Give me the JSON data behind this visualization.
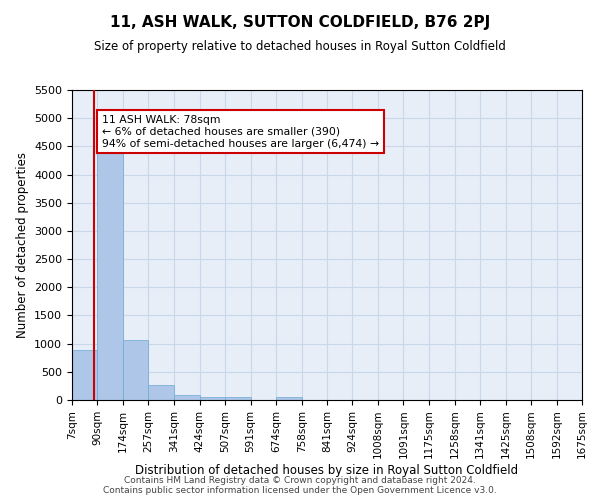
{
  "title": "11, ASH WALK, SUTTON COLDFIELD, B76 2PJ",
  "subtitle": "Size of property relative to detached houses in Royal Sutton Coldfield",
  "xlabel": "Distribution of detached houses by size in Royal Sutton Coldfield",
  "ylabel": "Number of detached properties",
  "footer_line1": "Contains HM Land Registry data © Crown copyright and database right 2024.",
  "footer_line2": "Contains public sector information licensed under the Open Government Licence v3.0.",
  "annotation_title": "11 ASH WALK: 78sqm",
  "annotation_line1": "← 6% of detached houses are smaller (390)",
  "annotation_line2": "94% of semi-detached houses are larger (6,474) →",
  "red_line_x": 78,
  "bar_edges": [
    7,
    90,
    174,
    257,
    341,
    424,
    507,
    591,
    674,
    758,
    841,
    924,
    1008,
    1091,
    1175,
    1258,
    1341,
    1425,
    1508,
    1592,
    1675
  ],
  "bar_heights": [
    880,
    4540,
    1060,
    270,
    80,
    60,
    50,
    0,
    60,
    0,
    0,
    0,
    0,
    0,
    0,
    0,
    0,
    0,
    0,
    0
  ],
  "bar_color": "#aec6e8",
  "bar_edge_color": "#6aaad4",
  "red_line_color": "#cc0000",
  "grid_color": "#c8d8e8",
  "bg_color": "#e8eef8",
  "annotation_box_edgecolor": "#cc0000",
  "ylim_max": 5500,
  "yticks": [
    0,
    500,
    1000,
    1500,
    2000,
    2500,
    3000,
    3500,
    4000,
    4500,
    5000,
    5500
  ],
  "title_fontsize": 11,
  "subtitle_fontsize": 8.5,
  "ylabel_fontsize": 8.5,
  "xlabel_fontsize": 8.5,
  "ytick_fontsize": 8,
  "xtick_fontsize": 7.5,
  "annotation_fontsize": 7.8,
  "footer_fontsize": 6.5
}
